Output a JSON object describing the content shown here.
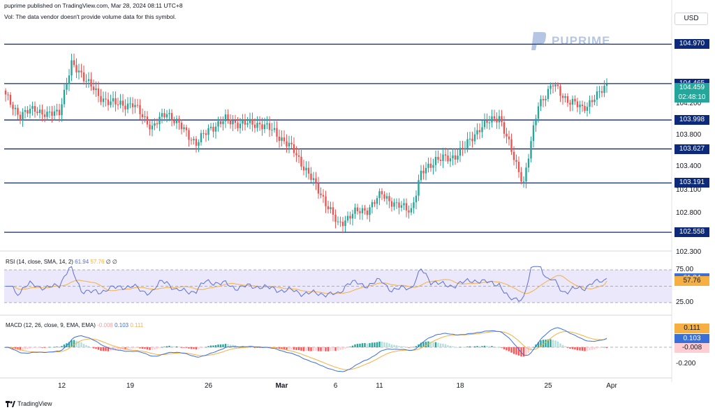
{
  "header": {
    "published": "puprime published on TradingView.com, Mar 28, 2024 08:11 UTC+8",
    "vol_note": "Vol: The data vendor doesn't provide volume data for this symbol."
  },
  "currency_button": "USD",
  "brand": "PUPRIME",
  "footer": "TradingView",
  "indicators": {
    "rsi": {
      "label": "RSI (14, close, SMA, 14, 2)",
      "v1": "61.94",
      "v2": "57.76",
      "extra": "∅ ∅"
    },
    "macd": {
      "label": "MACD (12, 26, close, 9, EMA, EMA)",
      "v1": "-0.008",
      "v2": "0.103",
      "v3": "0.111"
    }
  },
  "countdown": "02:48:10",
  "colors": {
    "up": "#26a69a",
    "down": "#ef5350",
    "level": "#0d2a7a",
    "rsi": "#5b6ed6",
    "signal": "#f5b041"
  },
  "chart_data": [
    {
      "type": "candlestick",
      "title": "",
      "ylabel": "USD",
      "ylim": [
        102.3,
        105.0
      ],
      "y_ticks": [
        "104.200",
        "103.800",
        "103.400",
        "103.100",
        "102.800",
        "102.300"
      ],
      "x_ticks": [
        "12",
        "19",
        "26",
        "Mar",
        "6",
        "11",
        "18",
        "25",
        "Apr"
      ],
      "levels": [
        "104.970",
        "104.465",
        "103.998",
        "103.627",
        "103.191",
        "102.558"
      ],
      "last_price": "104.459",
      "close_path_anchors": [
        [
          0,
          104.3
        ],
        [
          6,
          104.05
        ],
        [
          12,
          104.15
        ],
        [
          17,
          104.05
        ],
        [
          22,
          104.12
        ],
        [
          27,
          104.7
        ],
        [
          31,
          104.6
        ],
        [
          38,
          104.3
        ],
        [
          45,
          104.2
        ],
        [
          52,
          104.2
        ],
        [
          60,
          103.9
        ],
        [
          66,
          104.1
        ],
        [
          72,
          103.9
        ],
        [
          78,
          103.7
        ],
        [
          84,
          103.9
        ],
        [
          90,
          104.0
        ],
        [
          96,
          103.95
        ],
        [
          104,
          103.95
        ],
        [
          110,
          103.85
        ],
        [
          118,
          103.6
        ],
        [
          124,
          103.3
        ],
        [
          130,
          103.0
        ],
        [
          136,
          102.65
        ],
        [
          142,
          102.8
        ],
        [
          148,
          102.85
        ],
        [
          154,
          103.05
        ],
        [
          160,
          102.9
        ],
        [
          166,
          102.85
        ],
        [
          170,
          103.3
        ],
        [
          176,
          103.5
        ],
        [
          182,
          103.5
        ],
        [
          188,
          103.65
        ],
        [
          194,
          103.9
        ],
        [
          202,
          104.05
        ],
        [
          208,
          103.5
        ],
        [
          212,
          103.2
        ],
        [
          218,
          104.2
        ],
        [
          224,
          104.45
        ],
        [
          230,
          104.25
        ],
        [
          236,
          104.15
        ],
        [
          242,
          104.3
        ],
        [
          246,
          104.459
        ]
      ]
    },
    {
      "type": "line",
      "title": "RSI (14, close, SMA, 14, 2)",
      "ylim": [
        20,
        80
      ],
      "y_ticks": [
        "75.00",
        "25.00"
      ],
      "series": [
        {
          "name": "RSI",
          "last": 61.94
        },
        {
          "name": "RSI-based MA",
          "last": 57.76
        }
      ]
    },
    {
      "type": "bar",
      "title": "MACD (12, 26, close, 9, EMA, EMA)",
      "ylim": [
        -0.28,
        0.22
      ],
      "y_ticks": [
        "-0.200"
      ],
      "series": [
        {
          "name": "Histogram",
          "last": -0.008
        },
        {
          "name": "MACD",
          "last": 0.103
        },
        {
          "name": "Signal",
          "last": 0.111
        }
      ]
    }
  ]
}
